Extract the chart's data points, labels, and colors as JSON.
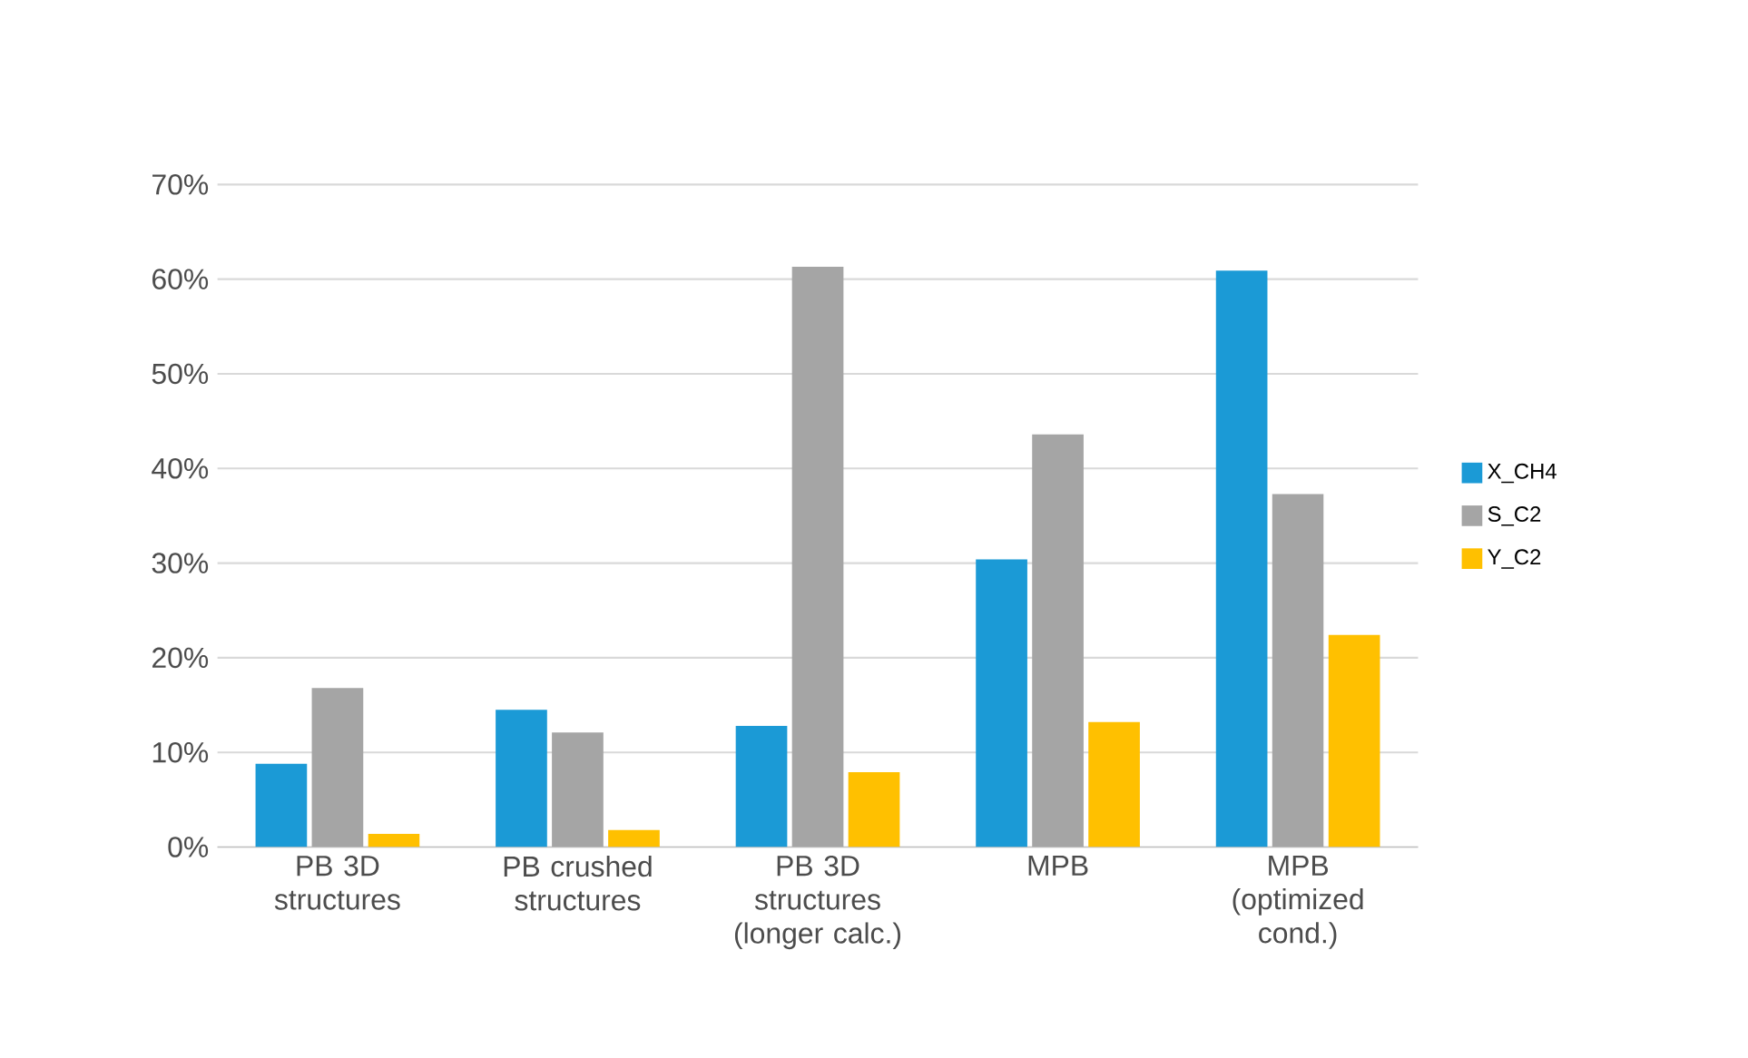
{
  "chart_data": {
    "type": "bar",
    "categories": [
      "PB 3D structures",
      "PB crushed structures",
      "PB 3D structures (longer calc.)",
      "MPB",
      "MPB (optimized cond.)"
    ],
    "series": [
      {
        "name": "X_CH4",
        "color": "#1b9ad6",
        "values": [
          8.8,
          14.5,
          12.8,
          30.4,
          60.9
        ]
      },
      {
        "name": "S_C2",
        "color": "#a5a5a5",
        "values": [
          16.8,
          12.1,
          61.3,
          43.6,
          37.3
        ]
      },
      {
        "name": "Y_C2",
        "color": "#ffc000",
        "values": [
          1.4,
          1.8,
          7.9,
          13.2,
          22.4
        ]
      }
    ],
    "ylim": [
      0,
      70
    ],
    "yticks": [
      {
        "value": 0,
        "label": "0%"
      },
      {
        "value": 10,
        "label": "10%"
      },
      {
        "value": 20,
        "label": "20%"
      },
      {
        "value": 30,
        "label": "30%"
      },
      {
        "value": 40,
        "label": "40%"
      },
      {
        "value": 50,
        "label": "50%"
      },
      {
        "value": 60,
        "label": "60%"
      },
      {
        "value": 70,
        "label": "70%"
      }
    ],
    "grid": "y",
    "legend": "right"
  }
}
